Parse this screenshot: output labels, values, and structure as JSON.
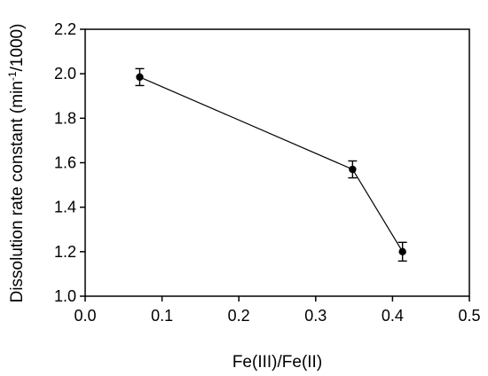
{
  "chart_data": {
    "type": "line",
    "title": "",
    "xlabel": "Fe(III)/Fe(II)",
    "ylabel": {
      "main": "Dissolution rate constant (min",
      "superscript": "-1",
      "tail": "/1000)"
    },
    "xlim": [
      0.0,
      0.5
    ],
    "ylim": [
      1.0,
      2.2
    ],
    "x_ticks": [
      "0.0",
      "0.1",
      "0.2",
      "0.3",
      "0.4",
      "0.5"
    ],
    "y_ticks": [
      "1.0",
      "1.2",
      "1.4",
      "1.6",
      "1.8",
      "2.0",
      "2.2"
    ],
    "grid": false,
    "legend": "none",
    "series": [
      {
        "x": [
          0.071,
          0.348,
          0.413
        ],
        "y": [
          1.985,
          1.57,
          1.2
        ],
        "error": [
          0.038,
          0.038,
          0.042
        ],
        "marker": "circle",
        "color": "#000000"
      }
    ]
  }
}
